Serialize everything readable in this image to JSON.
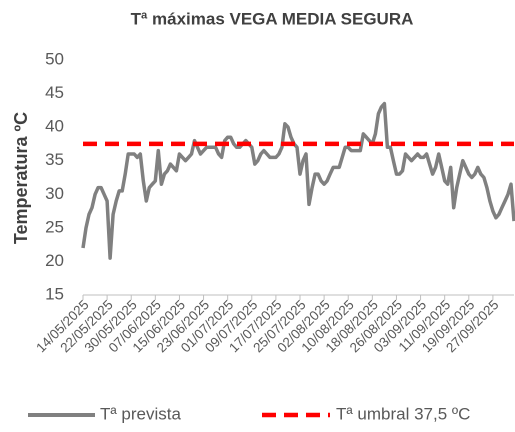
{
  "chart_data": {
    "type": "line",
    "title": "Tª máximas VEGA MEDIA SEGURA",
    "y_label": "Temperatura ºC",
    "categories": [
      "14/05/2025",
      null,
      null,
      null,
      null,
      null,
      null,
      null,
      "22/05/2025",
      null,
      null,
      null,
      null,
      null,
      null,
      null,
      "30/05/2025",
      null,
      null,
      null,
      null,
      null,
      null,
      null,
      "07/06/2025",
      null,
      null,
      null,
      null,
      null,
      null,
      null,
      "15/06/2025",
      null,
      null,
      null,
      null,
      null,
      null,
      null,
      "23/06/2025",
      null,
      null,
      null,
      null,
      null,
      null,
      null,
      "01/07/2025",
      null,
      null,
      null,
      null,
      null,
      null,
      null,
      "09/07/2025",
      null,
      null,
      null,
      null,
      null,
      null,
      null,
      "17/07/2025",
      null,
      null,
      null,
      null,
      null,
      null,
      null,
      "25/07/2025",
      null,
      null,
      null,
      null,
      null,
      null,
      null,
      "02/08/2025",
      null,
      null,
      null,
      null,
      null,
      null,
      null,
      "10/08/2025",
      null,
      null,
      null,
      null,
      null,
      null,
      null,
      "18/08/2025",
      null,
      null,
      null,
      null,
      null,
      null,
      null,
      "26/08/2025",
      null,
      null,
      null,
      null,
      null,
      null,
      null,
      "03/09/2025",
      null,
      null,
      null,
      null,
      null,
      null,
      null,
      "11/09/2025",
      null,
      null,
      null,
      null,
      null,
      null,
      null,
      "19/09/2025",
      null,
      null,
      null,
      null,
      null,
      null,
      null,
      "27/09/2025",
      null,
      null,
      null,
      null,
      null,
      null,
      null
    ],
    "series": [
      {
        "name": "Tª prevista",
        "color": "#808080",
        "values": [
          22,
          25,
          27,
          28,
          30,
          31,
          31,
          30,
          29,
          20.5,
          27,
          29,
          30.5,
          30.5,
          33,
          36,
          36,
          36,
          35.5,
          36,
          32,
          29,
          31,
          31.5,
          32,
          36.5,
          31.5,
          33,
          33.5,
          34.5,
          34,
          33.5,
          36,
          35.5,
          35,
          35.5,
          36,
          38,
          37,
          36,
          36.5,
          37,
          37,
          37,
          37,
          36,
          35.5,
          38,
          38.5,
          38.5,
          37.5,
          37,
          37,
          37.5,
          38,
          37.5,
          37,
          34.5,
          35,
          36,
          36.5,
          36,
          35.5,
          35.5,
          35.5,
          36,
          37,
          40.5,
          40,
          38.5,
          37.5,
          37,
          33,
          35,
          36,
          28.5,
          31,
          33,
          33,
          32,
          31.5,
          32,
          33,
          34,
          34,
          34,
          35.5,
          37,
          37,
          36.5,
          36.5,
          36.5,
          36.5,
          39,
          38.5,
          38,
          37.5,
          39,
          42,
          43,
          43.5,
          37,
          37,
          35,
          33,
          33,
          33.5,
          36,
          35.5,
          35,
          35.5,
          36,
          35.5,
          35.5,
          36,
          34.5,
          33,
          34,
          36,
          34,
          32,
          31.5,
          34,
          28,
          31,
          33,
          35,
          34,
          33,
          32.5,
          33,
          34,
          33,
          32.5,
          31,
          29,
          27.5,
          26.5,
          27,
          28,
          29,
          30,
          31.5,
          26
        ]
      }
    ],
    "reference_line": {
      "name": "Tª umbral 37,5 ºC",
      "value": 37.5,
      "color": "#ff0000",
      "dashed": true
    },
    "ylim": [
      15,
      50
    ],
    "yticks": [
      15,
      20,
      25,
      30,
      35,
      40,
      45,
      50
    ],
    "grid": false
  }
}
